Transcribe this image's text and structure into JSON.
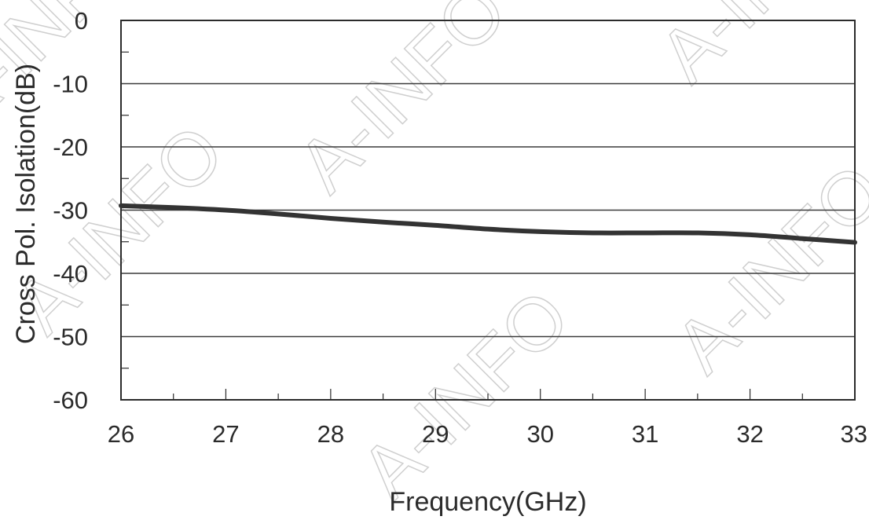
{
  "watermark_text": "A-INFO",
  "chart_data": {
    "type": "line",
    "xlabel": "Frequency(GHz)",
    "ylabel": "Cross Pol. Isolation(dB)",
    "xlim": [
      26,
      33
    ],
    "ylim": [
      -60,
      0
    ],
    "x_ticks": [
      26,
      27,
      28,
      29,
      30,
      31,
      32,
      33
    ],
    "y_ticks": [
      0,
      -10,
      -20,
      -30,
      -40,
      -50,
      -60
    ],
    "grid": "horizontal major",
    "series": [
      {
        "color": "#333333",
        "x": [
          26,
          26.5,
          27,
          27.5,
          28,
          28.5,
          29,
          29.5,
          30,
          30.5,
          31,
          31.5,
          32,
          32.5,
          33
        ],
        "y": [
          -29.3,
          -29.6,
          -30.0,
          -30.6,
          -31.3,
          -31.9,
          -32.4,
          -33.0,
          -33.4,
          -33.6,
          -33.6,
          -33.6,
          -33.9,
          -34.5,
          -35.1
        ]
      }
    ]
  }
}
